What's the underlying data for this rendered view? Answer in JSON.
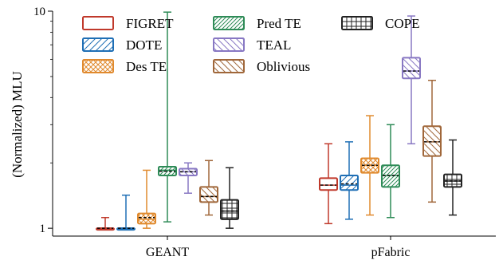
{
  "chart_data": {
    "type": "box",
    "ylabel": "(Normalized) MLU",
    "yscale": "log",
    "ylim": [
      0.92,
      10
    ],
    "yticks": [
      {
        "value": 1,
        "label": "1"
      },
      {
        "value": 10,
        "label": "10"
      }
    ],
    "legend_position": "top-left",
    "categories": [
      "GEANT",
      "pFabric"
    ],
    "series": [
      {
        "name": "FIGRET",
        "color": "#c0392b",
        "hatch": "none",
        "boxes": [
          {
            "min": 1.0,
            "q1": 1.0,
            "median": 1.0,
            "mean": 1.0,
            "q3": 1.0,
            "max": 1.12
          },
          {
            "min": 1.05,
            "q1": 1.5,
            "median": 1.58,
            "mean": 1.58,
            "q3": 1.7,
            "max": 2.45
          }
        ]
      },
      {
        "name": "DOTE",
        "color": "#1f6fb5",
        "hatch": "diag-forward",
        "boxes": [
          {
            "min": 1.0,
            "q1": 1.0,
            "median": 1.0,
            "mean": 1.0,
            "q3": 1.0,
            "max": 1.42
          },
          {
            "min": 1.1,
            "q1": 1.5,
            "median": 1.58,
            "mean": 1.6,
            "q3": 1.75,
            "max": 2.5
          }
        ]
      },
      {
        "name": "Des TE",
        "color": "#e08a2e",
        "hatch": "cross",
        "boxes": [
          {
            "min": 1.0,
            "q1": 1.05,
            "median": 1.1,
            "mean": 1.12,
            "q3": 1.17,
            "max": 1.85
          },
          {
            "min": 1.15,
            "q1": 1.8,
            "median": 1.95,
            "mean": 1.95,
            "q3": 2.1,
            "max": 3.3
          }
        ]
      },
      {
        "name": "Pred TE",
        "color": "#2e8b57",
        "hatch": "diag-forward-dense",
        "boxes": [
          {
            "min": 1.07,
            "q1": 1.75,
            "median": 1.85,
            "mean": 1.83,
            "q3": 1.92,
            "max": 9.9
          },
          {
            "min": 1.12,
            "q1": 1.55,
            "median": 1.75,
            "mean": 1.75,
            "q3": 1.95,
            "max": 3.0
          }
        ]
      },
      {
        "name": "TEAL",
        "color": "#8878c3",
        "hatch": "diag-back",
        "boxes": [
          {
            "min": 1.45,
            "q1": 1.75,
            "median": 1.82,
            "mean": 1.82,
            "q3": 1.88,
            "max": 2.0
          },
          {
            "min": 2.45,
            "q1": 4.9,
            "median": 5.3,
            "mean": 5.3,
            "q3": 6.1,
            "max": 9.5
          }
        ]
      },
      {
        "name": "Oblivious",
        "color": "#a0673a",
        "hatch": "diag-back",
        "boxes": [
          {
            "min": 1.15,
            "q1": 1.32,
            "median": 1.4,
            "mean": 1.4,
            "q3": 1.55,
            "max": 2.05
          },
          {
            "min": 1.32,
            "q1": 2.15,
            "median": 2.5,
            "mean": 2.5,
            "q3": 2.95,
            "max": 4.8
          }
        ]
      },
      {
        "name": "COPE",
        "color": "#222222",
        "hatch": "grid",
        "boxes": [
          {
            "min": 1.0,
            "q1": 1.1,
            "median": 1.2,
            "mean": 1.2,
            "q3": 1.35,
            "max": 1.9
          },
          {
            "min": 1.15,
            "q1": 1.55,
            "median": 1.65,
            "mean": 1.65,
            "q3": 1.77,
            "max": 2.55
          }
        ]
      }
    ]
  }
}
